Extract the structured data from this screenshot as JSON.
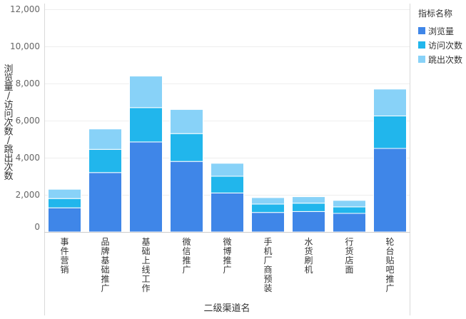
{
  "chart_data": {
    "type": "bar",
    "stacked": true,
    "categories": [
      "事件营销",
      "品牌基础推广",
      "基础上线工作",
      "微信推广",
      "微博推广",
      "手机厂商预装",
      "水货刷机",
      "行货店面",
      "轮台 贴吧推广"
    ],
    "series": [
      {
        "name": "浏览量",
        "color": "#3f86e8",
        "values": [
          1300,
          3200,
          4850,
          3800,
          2100,
          1050,
          1100,
          1000,
          4500
        ]
      },
      {
        "name": "访问次数",
        "color": "#21b6ec",
        "values": [
          500,
          1250,
          1850,
          1500,
          900,
          450,
          450,
          350,
          1750
        ]
      },
      {
        "name": "跳出次数",
        "color": "#88d2f8",
        "values": [
          500,
          1100,
          1700,
          1300,
          700,
          350,
          350,
          350,
          1450
        ]
      }
    ],
    "ylim": [
      0,
      12000
    ],
    "yticks": [
      "0",
      "2,000",
      "4,000",
      "6,000",
      "8,000",
      "10,000",
      "12,000"
    ],
    "xlabel": "二级渠道名",
    "ylabel": "浏览量/访问次数/跳出次数",
    "grid": true,
    "legend": {
      "title": "指标名称",
      "position": "top-right"
    }
  }
}
